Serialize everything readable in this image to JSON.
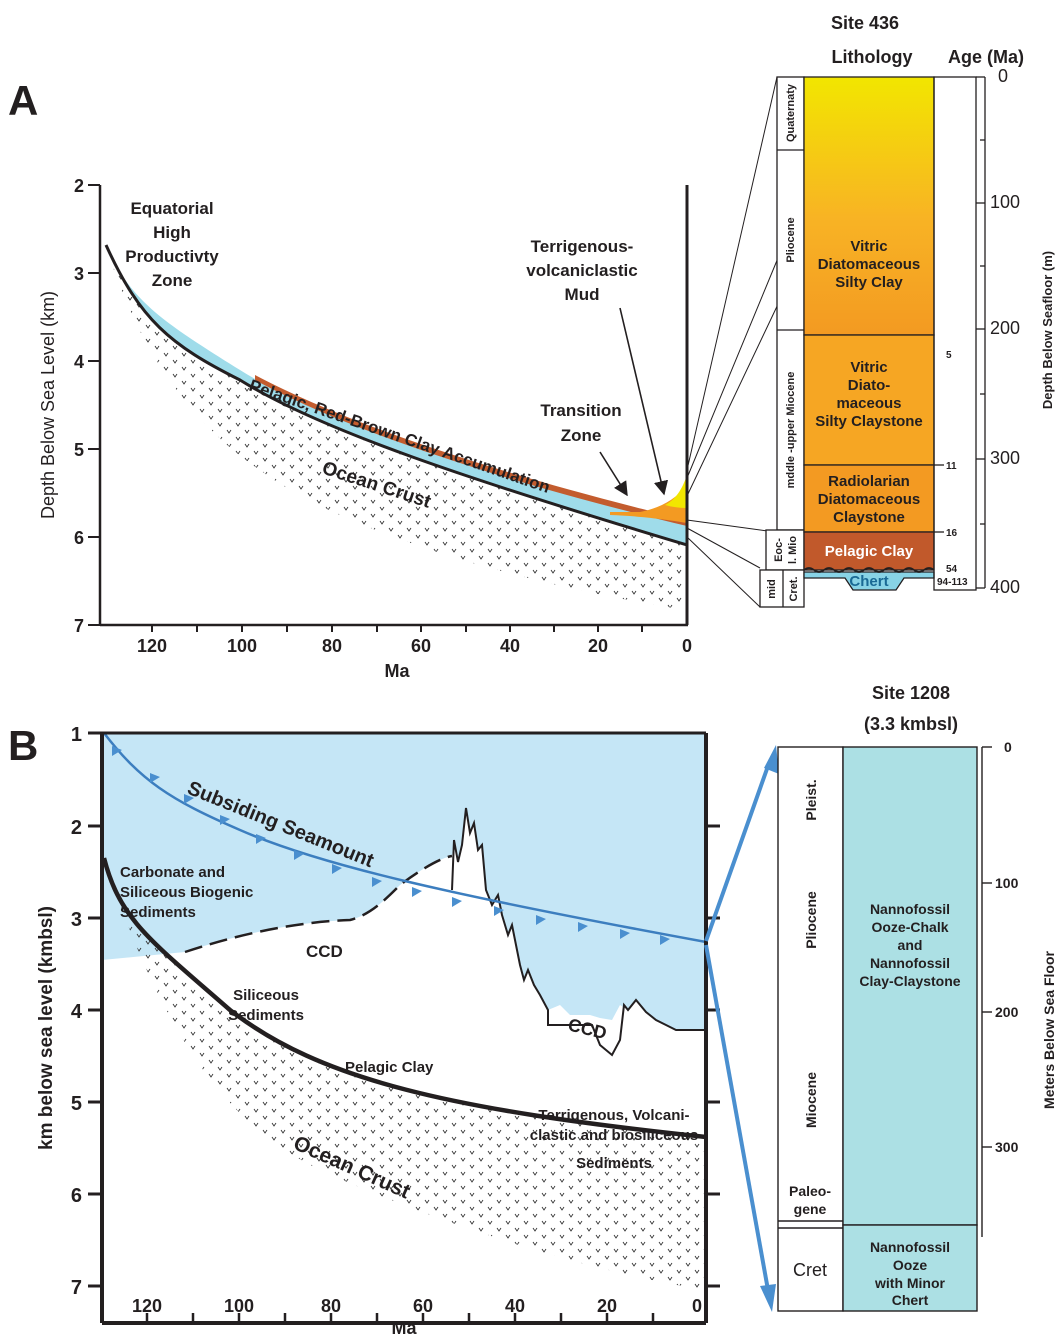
{
  "panel_a": {
    "letter": "A",
    "x_title": "Ma",
    "y_title": "Depth Below Sea Level (km)",
    "x_ticks": [
      "120",
      "100",
      "80",
      "60",
      "40",
      "20",
      "0"
    ],
    "y_ticks": [
      "2",
      "3",
      "4",
      "5",
      "6",
      "7"
    ],
    "labels": {
      "eq1": "Equatorial",
      "eq2": "High",
      "eq3": "Productivty",
      "eq4": "Zone",
      "terr1": "Terrigenous-",
      "terr2": "volcaniclastic",
      "terr3": "Mud",
      "trans1": "Transition",
      "trans2": "Zone",
      "pelagic": "Pelagic, Red-Brown Clay Accumulation",
      "crust": "Ocean Crust"
    },
    "column": {
      "site": "Site 436",
      "lith_header": "Lithology",
      "age_header": "Age (Ma)",
      "depth_title": "Depth Below Seafloor (m)",
      "depth_ticks": [
        "0",
        "100",
        "200",
        "300",
        "400"
      ],
      "epochs": [
        "Quaternaty",
        "Pliocene",
        "mddle -upper Miocene",
        "Eoc-",
        "l. Mio",
        "mid",
        "Cret."
      ],
      "units": [
        {
          "l1": "Vitric",
          "l2": "Diatomaceous",
          "l3": "Silty Clay",
          "l4": ""
        },
        {
          "l1": "Vitric",
          "l2": "Diato-",
          "l3": "maceous",
          "l4": "Silty Claystone"
        },
        {
          "l1": "Radiolarian",
          "l2": "Diatomaceous",
          "l3": "Claystone",
          "l4": ""
        },
        {
          "l1": "Pelagic Clay",
          "l2": "",
          "l3": "",
          "l4": ""
        },
        {
          "l1": "Chert",
          "l2": "",
          "l3": "",
          "l4": ""
        }
      ],
      "ages": [
        "5",
        "11",
        "16",
        "54",
        "94-113"
      ],
      "colors": {
        "quat": "#f2e600",
        "plio": "#f8b324",
        "mio": "#f39a22",
        "pelagic": "#c1592b",
        "chert": "#88d3e6"
      }
    }
  },
  "panel_b": {
    "letter": "B",
    "x_title": "Ma",
    "y_title": "km below sea level (kmbsl)",
    "x_ticks": [
      "120",
      "100",
      "80",
      "60",
      "40",
      "20",
      "0"
    ],
    "y_ticks": [
      "1",
      "2",
      "3",
      "4",
      "5",
      "6",
      "7"
    ],
    "labels": {
      "seamount": "Subsiding Seamount",
      "carb1": "Carbonate and",
      "carb2": "Siliceous Biogenic",
      "carb3": "Sediments",
      "ccd": "CCD",
      "ccd2": "CCD",
      "sil1": "Siliceous",
      "sil2": "Sediments",
      "pelagic": "Pelagic Clay",
      "crust": "Ocean Crust",
      "terr1": "Terrigenous, Volcani-",
      "terr2": "clastic and biosiliceous",
      "terr3": "Sediments"
    },
    "column": {
      "site1": "Site 1208",
      "site2": "(3.3 kmbsl)",
      "depth_title": "Meters Below Sea Floor",
      "depth_ticks": [
        "0",
        "100",
        "200",
        "300"
      ],
      "epochs": [
        "Pleist.",
        "Pliocene",
        "Miocene",
        "Paleo-",
        "gene",
        "Cret"
      ],
      "unit1": [
        "Nannofossil",
        "Ooze-Chalk",
        "and",
        "Nannofossil",
        "Clay-Claystone"
      ],
      "unit2": [
        "Nannofossil",
        "Ooze",
        "with Minor",
        "Chert"
      ],
      "color": "#ace0e4"
    }
  },
  "colors": {
    "water_b": "#c5e6f6",
    "sediment_a": "#9fdcea",
    "red_clay": "#c35c2e",
    "seamount_line": "#3c7ebf",
    "arrow_blue": "#4a8fcf"
  }
}
